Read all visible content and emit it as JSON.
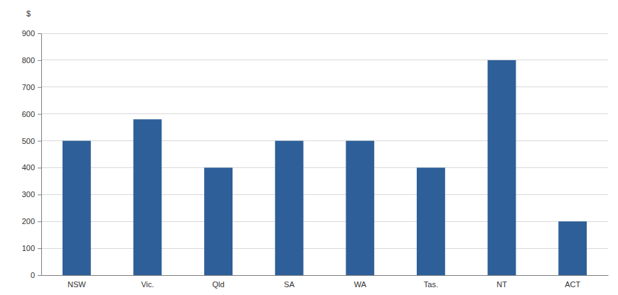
{
  "chart_data": {
    "type": "bar",
    "y_label": "$",
    "categories": [
      "NSW",
      "Vic.",
      "Qld",
      "SA",
      "WA",
      "Tas.",
      "NT",
      "ACT"
    ],
    "values": [
      500,
      580,
      400,
      500,
      500,
      400,
      800,
      200
    ],
    "color": "#2e5f99",
    "ylim": [
      0,
      900
    ],
    "yticks": [
      0,
      100,
      200,
      300,
      400,
      500,
      600,
      700,
      800,
      900
    ],
    "grid": true
  }
}
